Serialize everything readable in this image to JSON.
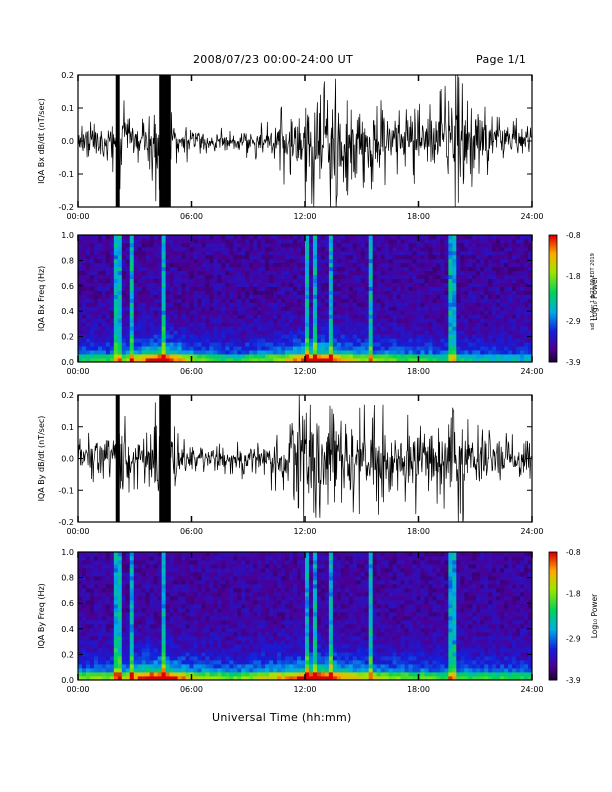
{
  "header": {
    "title": "2008/07/23  00:00-24:00 UT",
    "page": "Page 1/1"
  },
  "xlabel": "Universal Time (hh:mm)",
  "sidenote": "sdl 11 Apr 1 1/21 09 EDT 2019",
  "colorbar": {
    "label": "Log₁₀ Power",
    "ticks": [
      {
        "value": -0.8,
        "label": "-0.8"
      },
      {
        "value": -1.8,
        "label": "-1.8"
      },
      {
        "value": -2.9,
        "label": "-2.9"
      },
      {
        "value": -3.9,
        "label": "-3.9"
      }
    ]
  },
  "chart_data": [
    {
      "type": "line",
      "ylabel": "IQA Bx dB/dt (nT/sec)",
      "xlim": [
        0,
        24
      ],
      "ylim": [
        -0.2,
        0.2
      ],
      "xticks": [
        "00:00",
        "06:00",
        "12:00",
        "18:00",
        "24:00"
      ],
      "yticks": [
        "0.2",
        "0.1",
        "0.0",
        "-0.1",
        "-0.2"
      ],
      "envelope": {
        "hour": [
          0,
          1,
          2,
          2.3,
          3,
          3.5,
          4.5,
          5,
          6,
          8,
          10,
          11,
          12,
          13,
          14,
          15,
          16,
          17,
          18,
          19,
          20,
          21,
          22,
          23,
          24
        ],
        "amp": [
          0.05,
          0.06,
          0.07,
          0.12,
          0.08,
          0.06,
          0.2,
          0.07,
          0.04,
          0.03,
          0.05,
          0.1,
          0.18,
          0.2,
          0.19,
          0.13,
          0.11,
          0.07,
          0.12,
          0.1,
          0.18,
          0.13,
          0.08,
          0.06,
          0.04
        ]
      }
    },
    {
      "type": "heatmap",
      "ylabel": "IQA Bx Freq (Hz)",
      "xlim": [
        0,
        24
      ],
      "ylim": [
        0,
        1.0
      ],
      "zlim": [
        -3.9,
        -0.8
      ],
      "xticks": [
        "00:00",
        "06:00",
        "12:00",
        "18:00",
        "24:00"
      ],
      "yticks": [
        "1.0",
        "0.8",
        "0.6",
        "0.4",
        "0.2",
        "0.0"
      ],
      "bright_lines_hour": [
        2.1,
        2.8,
        4.6,
        12.1,
        12.6,
        13.3,
        15.4,
        19.8
      ],
      "low_freq_intensity": {
        "hour": [
          0,
          2,
          4.5,
          6,
          8,
          10,
          12,
          13,
          14,
          16,
          18,
          20,
          22,
          24
        ],
        "level": [
          0.35,
          0.4,
          0.85,
          0.5,
          0.35,
          0.45,
          0.7,
          0.8,
          0.6,
          0.45,
          0.4,
          0.35,
          0.3,
          0.25
        ]
      }
    },
    {
      "type": "line",
      "ylabel": "IQA By dB/dt (nT/sec)",
      "xlim": [
        0,
        24
      ],
      "ylim": [
        -0.2,
        0.2
      ],
      "xticks": [
        "00:00",
        "06:00",
        "12:00",
        "18:00",
        "24:00"
      ],
      "yticks": [
        "0.2",
        "0.1",
        "0.0",
        "-0.1",
        "-0.2"
      ],
      "envelope": {
        "hour": [
          0,
          1,
          2,
          2.3,
          3,
          3.5,
          4.5,
          5,
          6,
          8,
          10,
          11,
          12,
          13,
          14,
          15,
          16,
          17,
          18,
          19,
          20,
          21,
          22,
          23,
          24
        ],
        "amp": [
          0.06,
          0.07,
          0.08,
          0.14,
          0.09,
          0.07,
          0.2,
          0.08,
          0.05,
          0.04,
          0.06,
          0.12,
          0.2,
          0.2,
          0.2,
          0.16,
          0.13,
          0.09,
          0.14,
          0.11,
          0.18,
          0.12,
          0.08,
          0.06,
          0.05
        ]
      }
    },
    {
      "type": "heatmap",
      "ylabel": "IQA By Freq (Hz)",
      "xlim": [
        0,
        24
      ],
      "ylim": [
        0,
        1.0
      ],
      "zlim": [
        -3.9,
        -0.8
      ],
      "xticks": [
        "00:00",
        "06:00",
        "12:00",
        "18:00",
        "24:00"
      ],
      "yticks": [
        "1.0",
        "0.8",
        "0.6",
        "0.4",
        "0.2",
        "0.0"
      ],
      "bright_lines_hour": [
        2.1,
        2.8,
        4.6,
        12.1,
        12.6,
        13.3,
        15.4,
        19.8
      ],
      "low_freq_intensity": {
        "hour": [
          0,
          2,
          4.5,
          6,
          8,
          10,
          12,
          13,
          14,
          16,
          18,
          20,
          22,
          24
        ],
        "level": [
          0.45,
          0.5,
          0.9,
          0.55,
          0.45,
          0.55,
          0.75,
          0.85,
          0.65,
          0.5,
          0.45,
          0.4,
          0.4,
          0.35
        ]
      }
    }
  ]
}
